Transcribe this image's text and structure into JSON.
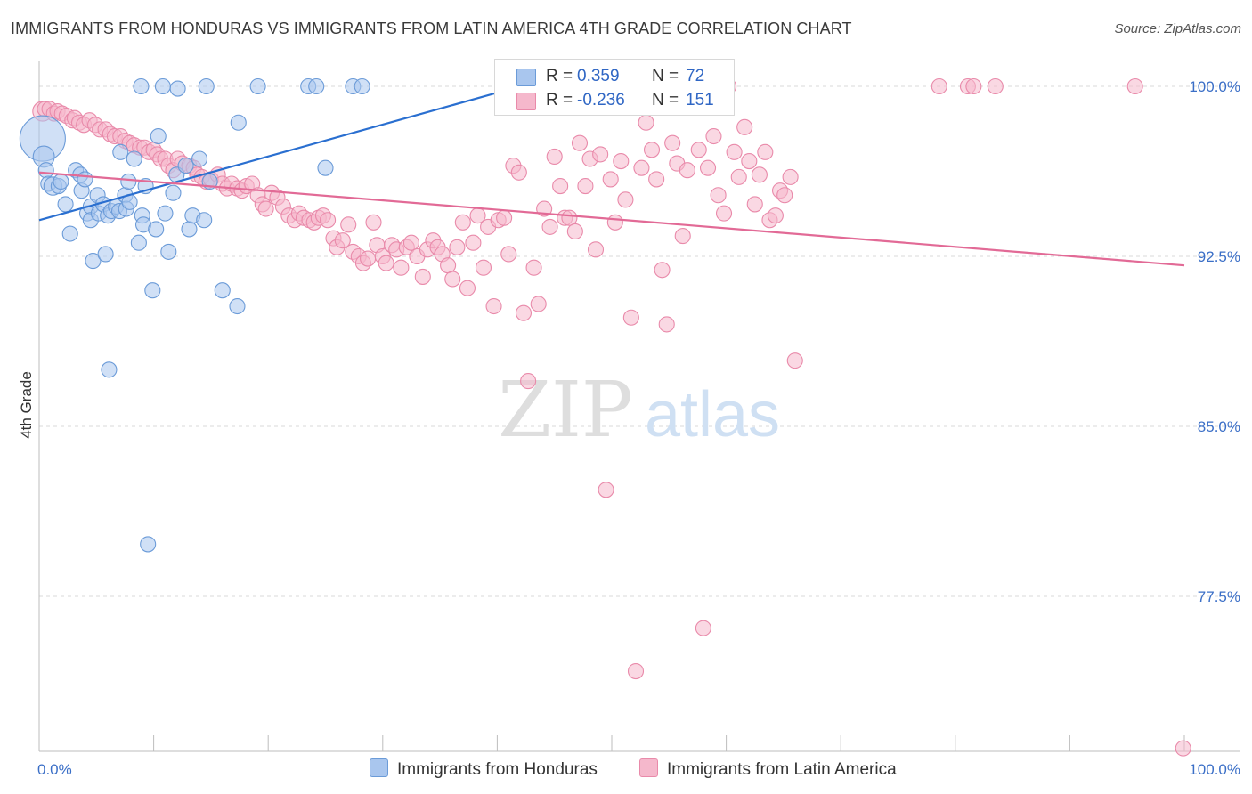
{
  "title": "IMMIGRANTS FROM HONDURAS VS IMMIGRANTS FROM LATIN AMERICA 4TH GRADE CORRELATION CHART",
  "source": "Source: ZipAtlas.com",
  "watermark": {
    "zip": "ZIP",
    "atlas": "atlas"
  },
  "colors": {
    "blue_fill": "#a9c6ee",
    "blue_stroke": "#6b9bd8",
    "blue_line": "#2a6fd0",
    "pink_fill": "#f5b8cc",
    "pink_stroke": "#e98aaa",
    "pink_line": "#e26a96",
    "tick_text": "#3b6fc7",
    "grid": "#d9d9d9"
  },
  "legend": {
    "rows": [
      {
        "r_label": "R =",
        "r_value": "0.359",
        "n_label": "N =",
        "n_value": "72",
        "swatch": "blue"
      },
      {
        "r_label": "R =",
        "r_value": "-0.236",
        "n_label": "N =",
        "n_value": "151",
        "swatch": "pink"
      }
    ]
  },
  "bottom_legend": {
    "series1": "Immigrants from Honduras",
    "series2": "Immigrants from Latin America"
  },
  "chart_data": {
    "type": "scatter",
    "title": "IMMIGRANTS FROM HONDURAS VS IMMIGRANTS FROM LATIN AMERICA 4TH GRADE CORRELATION CHART",
    "xlabel": "",
    "ylabel": "4th Grade",
    "xlim": [
      0,
      100
    ],
    "ylim": [
      70.8,
      101.5
    ],
    "x_tick_labels": [
      {
        "x": 0,
        "label": "0.0%"
      },
      {
        "x": 100,
        "label": "100.0%"
      }
    ],
    "y_ticks": [
      {
        "y": 100.0,
        "label": "100.0%"
      },
      {
        "y": 92.5,
        "label": "92.5%"
      },
      {
        "y": 85.0,
        "label": "85.0%"
      },
      {
        "y": 77.5,
        "label": "77.5%"
      }
    ],
    "legend_position": "top-center",
    "series": [
      {
        "name": "Immigrants from Honduras",
        "color": "blue",
        "R": 0.359,
        "N": 72,
        "trend": {
          "x0": 0,
          "y0": 94.1,
          "x1": 42.0,
          "y1": 100.0
        },
        "points": [
          [
            0.3,
            97.7,
            3
          ],
          [
            0.4,
            96.9,
            1.4
          ],
          [
            0.6,
            96.3,
            1
          ],
          [
            0.8,
            95.7,
            1
          ],
          [
            1.2,
            95.6,
            1.2
          ],
          [
            1.7,
            95.6,
            1
          ],
          [
            1.9,
            95.8,
            1
          ],
          [
            2.3,
            94.8,
            1
          ],
          [
            2.7,
            93.5,
            1
          ],
          [
            3.2,
            96.3,
            1
          ],
          [
            3.6,
            96.1,
            1
          ],
          [
            3.7,
            95.4,
            1
          ],
          [
            4.0,
            95.9,
            1
          ],
          [
            4.2,
            94.4,
            1
          ],
          [
            4.5,
            94.7,
            1
          ],
          [
            4.5,
            94.1,
            1
          ],
          [
            4.7,
            92.3,
            1
          ],
          [
            5.1,
            95.2,
            1
          ],
          [
            5.2,
            94.4,
            1
          ],
          [
            5.6,
            94.8,
            1
          ],
          [
            5.8,
            92.6,
            1
          ],
          [
            6.0,
            94.3,
            1
          ],
          [
            6.1,
            87.5,
            1
          ],
          [
            6.3,
            94.5,
            1
          ],
          [
            6.7,
            94.7,
            1
          ],
          [
            7.0,
            94.5,
            1
          ],
          [
            7.1,
            97.1,
            1
          ],
          [
            7.5,
            95.2,
            1
          ],
          [
            7.6,
            94.6,
            1
          ],
          [
            7.8,
            95.8,
            1
          ],
          [
            7.9,
            94.9,
            1
          ],
          [
            8.3,
            96.8,
            1
          ],
          [
            8.7,
            93.1,
            1
          ],
          [
            8.9,
            100.0,
            1
          ],
          [
            9.0,
            94.3,
            1
          ],
          [
            9.1,
            93.9,
            1
          ],
          [
            9.3,
            95.6,
            1
          ],
          [
            9.5,
            79.8,
            1
          ],
          [
            9.9,
            91.0,
            1
          ],
          [
            10.2,
            93.7,
            1
          ],
          [
            10.4,
            97.8,
            1
          ],
          [
            10.8,
            100.0,
            1
          ],
          [
            11.0,
            94.4,
            1
          ],
          [
            11.3,
            92.7,
            1
          ],
          [
            11.7,
            95.3,
            1
          ],
          [
            12.0,
            96.1,
            1
          ],
          [
            12.1,
            99.9,
            1
          ],
          [
            12.8,
            96.5,
            1
          ],
          [
            13.1,
            93.7,
            1
          ],
          [
            13.4,
            94.3,
            1
          ],
          [
            14.0,
            96.8,
            1
          ],
          [
            14.4,
            94.1,
            1
          ],
          [
            14.6,
            100.0,
            1
          ],
          [
            14.9,
            95.8,
            1
          ],
          [
            16.0,
            91.0,
            1
          ],
          [
            17.3,
            90.3,
            1
          ],
          [
            17.4,
            98.4,
            1
          ],
          [
            19.1,
            100.0,
            1
          ],
          [
            23.5,
            100.0,
            1
          ],
          [
            24.2,
            100.0,
            1
          ],
          [
            25.0,
            96.4,
            1
          ],
          [
            27.4,
            100.0,
            1
          ],
          [
            28.2,
            100.0,
            1
          ]
        ]
      },
      {
        "name": "Immigrants from Latin America",
        "color": "pink",
        "R": -0.236,
        "N": 151,
        "trend": {
          "x0": 0,
          "y0": 96.2,
          "x1": 100,
          "y1": 92.1
        },
        "points": [
          [
            0.3,
            98.9,
            1.3
          ],
          [
            0.5,
            99.0,
            1
          ],
          [
            0.9,
            99.0,
            1
          ],
          [
            1.3,
            98.8,
            1
          ],
          [
            1.6,
            98.9,
            1
          ],
          [
            2.0,
            98.8,
            1
          ],
          [
            2.4,
            98.7,
            1
          ],
          [
            2.9,
            98.5,
            1
          ],
          [
            3.1,
            98.6,
            1
          ],
          [
            3.5,
            98.4,
            1
          ],
          [
            3.9,
            98.3,
            1
          ],
          [
            4.4,
            98.5,
            1
          ],
          [
            4.9,
            98.3,
            1
          ],
          [
            5.3,
            98.1,
            1
          ],
          [
            5.8,
            98.1,
            1
          ],
          [
            6.2,
            97.9,
            1
          ],
          [
            6.6,
            97.8,
            1
          ],
          [
            7.1,
            97.8,
            1
          ],
          [
            7.5,
            97.6,
            1
          ],
          [
            7.9,
            97.5,
            1
          ],
          [
            8.3,
            97.4,
            1
          ],
          [
            8.8,
            97.3,
            1
          ],
          [
            9.2,
            97.3,
            1
          ],
          [
            9.6,
            97.1,
            1
          ],
          [
            10.0,
            97.2,
            1
          ],
          [
            10.3,
            97.0,
            1
          ],
          [
            10.6,
            96.8,
            1
          ],
          [
            11.0,
            96.8,
            1
          ],
          [
            11.3,
            96.5,
            1
          ],
          [
            11.7,
            96.3,
            1
          ],
          [
            12.1,
            96.8,
            1
          ],
          [
            12.5,
            96.6,
            1
          ],
          [
            13.1,
            96.5,
            1
          ],
          [
            13.5,
            96.4,
            1
          ],
          [
            13.8,
            96.1,
            1
          ],
          [
            14.2,
            96.0,
            1
          ],
          [
            14.6,
            95.8,
            1
          ],
          [
            15.0,
            95.9,
            1
          ],
          [
            15.6,
            96.1,
            1
          ],
          [
            16.0,
            95.7,
            1
          ],
          [
            16.4,
            95.5,
            1
          ],
          [
            16.8,
            95.7,
            1
          ],
          [
            17.3,
            95.5,
            1
          ],
          [
            17.7,
            95.4,
            1
          ],
          [
            18.1,
            95.6,
            1
          ],
          [
            18.6,
            95.7,
            1
          ],
          [
            19.1,
            95.2,
            1
          ],
          [
            19.5,
            94.8,
            1
          ],
          [
            19.8,
            94.6,
            1
          ],
          [
            20.3,
            95.3,
            1
          ],
          [
            20.8,
            95.1,
            1
          ],
          [
            21.3,
            94.7,
            1
          ],
          [
            21.8,
            94.3,
            1
          ],
          [
            22.3,
            94.1,
            1
          ],
          [
            22.7,
            94.4,
            1
          ],
          [
            23.1,
            94.2,
            1
          ],
          [
            23.6,
            94.1,
            1
          ],
          [
            24.0,
            94.0,
            1
          ],
          [
            24.4,
            94.2,
            1
          ],
          [
            24.8,
            94.3,
            1
          ],
          [
            25.2,
            94.1,
            1
          ],
          [
            25.7,
            93.3,
            1
          ],
          [
            26.0,
            92.9,
            1
          ],
          [
            26.5,
            93.2,
            1
          ],
          [
            27.0,
            93.9,
            1
          ],
          [
            27.4,
            92.7,
            1
          ],
          [
            27.9,
            92.5,
            1
          ],
          [
            28.3,
            92.2,
            1
          ],
          [
            28.7,
            92.4,
            1
          ],
          [
            29.2,
            94.0,
            1
          ],
          [
            29.5,
            93.0,
            1
          ],
          [
            30.0,
            92.5,
            1
          ],
          [
            30.3,
            92.2,
            1
          ],
          [
            30.8,
            93.0,
            1
          ],
          [
            31.2,
            92.8,
            1
          ],
          [
            31.6,
            92.0,
            1
          ],
          [
            32.1,
            92.9,
            1
          ],
          [
            32.5,
            93.1,
            1
          ],
          [
            33.0,
            92.5,
            1
          ],
          [
            33.5,
            91.6,
            1
          ],
          [
            33.9,
            92.8,
            1
          ],
          [
            34.4,
            93.2,
            1
          ],
          [
            34.8,
            92.9,
            1
          ],
          [
            35.2,
            92.6,
            1
          ],
          [
            35.7,
            92.1,
            1
          ],
          [
            36.1,
            91.5,
            1
          ],
          [
            36.5,
            92.9,
            1
          ],
          [
            37.0,
            94.0,
            1
          ],
          [
            37.4,
            91.1,
            1
          ],
          [
            37.9,
            93.1,
            1
          ],
          [
            38.3,
            94.3,
            1
          ],
          [
            38.8,
            92.0,
            1
          ],
          [
            39.2,
            93.8,
            1
          ],
          [
            39.7,
            90.3,
            1
          ],
          [
            40.1,
            94.1,
            1
          ],
          [
            40.6,
            94.2,
            1
          ],
          [
            41.0,
            92.6,
            1
          ],
          [
            41.4,
            96.5,
            1
          ],
          [
            41.9,
            96.2,
            1
          ],
          [
            42.3,
            90.0,
            1
          ],
          [
            42.7,
            87.0,
            1
          ],
          [
            43.2,
            92.0,
            1
          ],
          [
            43.6,
            90.4,
            1
          ],
          [
            44.1,
            94.6,
            1
          ],
          [
            44.6,
            93.8,
            1
          ],
          [
            45.0,
            96.9,
            1
          ],
          [
            45.5,
            95.6,
            1
          ],
          [
            45.9,
            94.2,
            1
          ],
          [
            46.3,
            94.2,
            1
          ],
          [
            46.8,
            93.6,
            1
          ],
          [
            47.2,
            97.5,
            1
          ],
          [
            47.7,
            95.6,
            1
          ],
          [
            48.1,
            96.8,
            1
          ],
          [
            48.6,
            92.8,
            1
          ],
          [
            49.0,
            97.0,
            1
          ],
          [
            49.5,
            82.2,
            1
          ],
          [
            49.9,
            95.9,
            1
          ],
          [
            50.3,
            94.0,
            1
          ],
          [
            50.8,
            96.7,
            1
          ],
          [
            51.2,
            95.0,
            1
          ],
          [
            51.7,
            89.8,
            1
          ],
          [
            52.1,
            74.2,
            1
          ],
          [
            52.6,
            96.4,
            1
          ],
          [
            53.0,
            98.4,
            1
          ],
          [
            53.5,
            97.2,
            1
          ],
          [
            53.9,
            95.9,
            1
          ],
          [
            54.4,
            91.9,
            1
          ],
          [
            54.8,
            89.5,
            1
          ],
          [
            55.3,
            97.5,
            1
          ],
          [
            55.7,
            96.6,
            1
          ],
          [
            56.2,
            93.4,
            1
          ],
          [
            56.6,
            96.3,
            1
          ],
          [
            57.1,
            100.0,
            1
          ],
          [
            57.6,
            97.2,
            1
          ],
          [
            58.0,
            76.1,
            1
          ],
          [
            58.4,
            96.4,
            1
          ],
          [
            58.9,
            97.8,
            1
          ],
          [
            59.3,
            95.2,
            1
          ],
          [
            59.8,
            94.4,
            1
          ],
          [
            60.2,
            100.0,
            1
          ],
          [
            60.7,
            97.1,
            1
          ],
          [
            61.1,
            96.0,
            1
          ],
          [
            61.6,
            98.2,
            1
          ],
          [
            62.0,
            96.7,
            1
          ],
          [
            62.5,
            94.8,
            1
          ],
          [
            62.9,
            96.1,
            1
          ],
          [
            63.4,
            97.1,
            1
          ],
          [
            63.8,
            94.1,
            1
          ],
          [
            64.3,
            94.3,
            1
          ],
          [
            64.7,
            95.4,
            1
          ],
          [
            65.1,
            95.2,
            1
          ],
          [
            65.6,
            96.0,
            1
          ],
          [
            66.0,
            87.9,
            1
          ],
          [
            78.6,
            100.0,
            1
          ],
          [
            81.1,
            100.0,
            1
          ],
          [
            81.6,
            100.0,
            1
          ],
          [
            83.5,
            100.0,
            1
          ],
          [
            95.7,
            100.0,
            1
          ],
          [
            99.9,
            70.8,
            1
          ]
        ]
      }
    ]
  }
}
